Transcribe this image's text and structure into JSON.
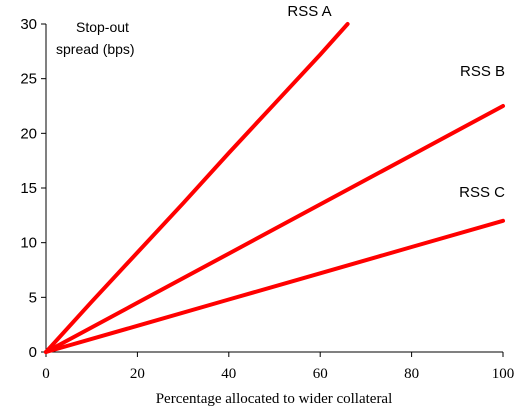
{
  "chart_data": {
    "type": "line",
    "title": "",
    "ylabel_lines": [
      "Stop-out",
      "spread (bps)"
    ],
    "xlabel": "Percentage allocated to wider collateral",
    "xlim": [
      0,
      100
    ],
    "ylim": [
      0,
      30
    ],
    "xticks": [
      0,
      20,
      40,
      60,
      80,
      100
    ],
    "yticks": [
      0,
      5,
      10,
      15,
      20,
      25,
      30
    ],
    "grid": false,
    "legend": "inline-labels",
    "line_color": "#ff0000",
    "series": [
      {
        "name": "RSS A",
        "x": [
          0,
          10,
          20,
          30,
          40,
          50,
          60,
          66
        ],
        "y": [
          0,
          4.6,
          9.1,
          13.6,
          18.2,
          22.7,
          27.2,
          30
        ]
      },
      {
        "name": "RSS B",
        "x": [
          0,
          20,
          40,
          60,
          80,
          100
        ],
        "y": [
          0,
          4.5,
          9.0,
          13.5,
          18.0,
          22.5
        ]
      },
      {
        "name": "RSS C",
        "x": [
          0,
          20,
          40,
          60,
          80,
          100
        ],
        "y": [
          0,
          2.4,
          4.8,
          7.2,
          9.6,
          12.0
        ]
      }
    ]
  }
}
